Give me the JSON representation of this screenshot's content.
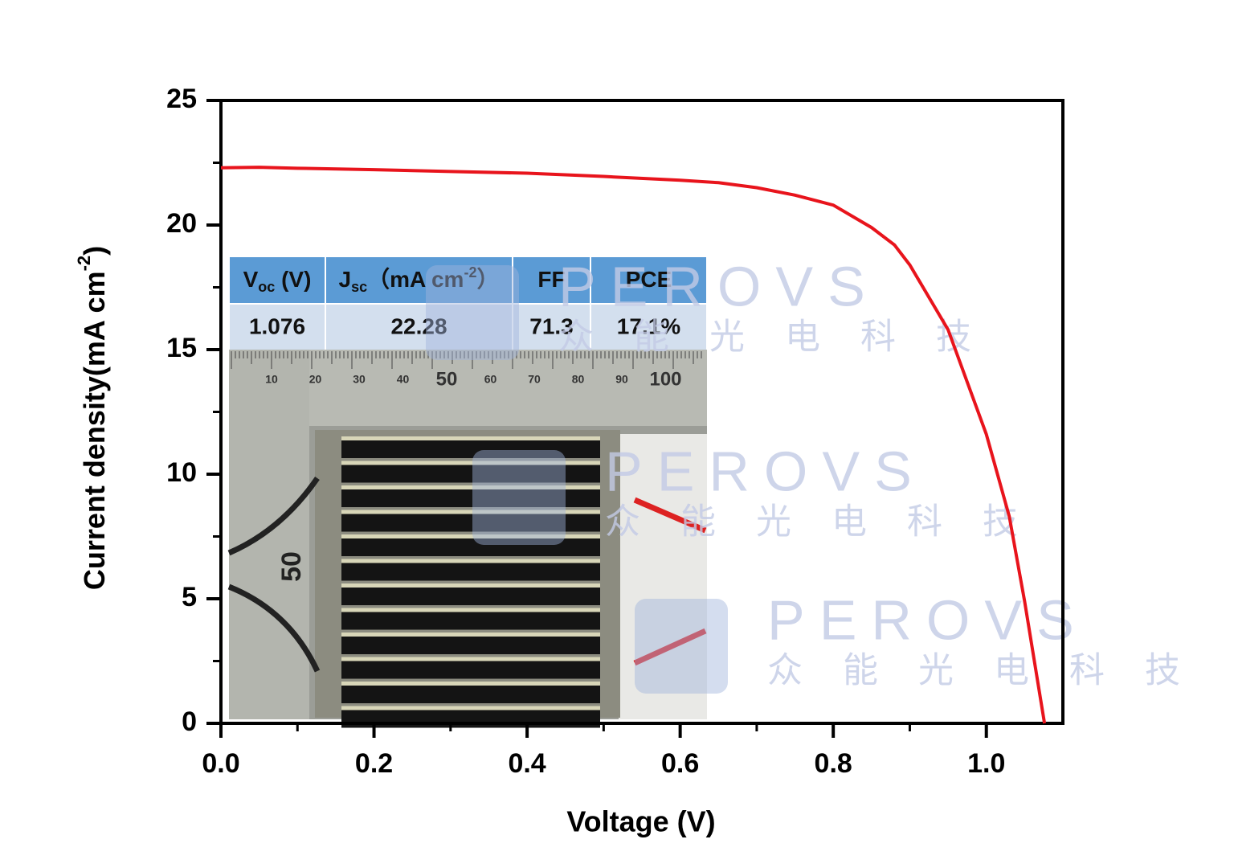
{
  "chart_data": {
    "type": "line",
    "xlabel": "Voltage (V)",
    "ylabel": {
      "text": "Current density(mA cm",
      "sup": "-2",
      "end": ")"
    },
    "x": [
      0,
      0.05,
      0.1,
      0.2,
      0.3,
      0.4,
      0.5,
      0.6,
      0.65,
      0.7,
      0.75,
      0.8,
      0.85,
      0.88,
      0.9,
      0.95,
      1.0,
      1.03,
      1.05,
      1.076
    ],
    "values": [
      22.3,
      22.32,
      22.28,
      22.22,
      22.15,
      22.08,
      21.95,
      21.8,
      21.7,
      21.5,
      21.2,
      20.8,
      19.9,
      19.2,
      18.4,
      15.8,
      11.6,
      8.3,
      4.9,
      0
    ],
    "color": "#e8141c",
    "xlim": [
      0,
      1.1
    ],
    "ylim": [
      0,
      25
    ],
    "xticks": [
      {
        "value": 0,
        "label": "0.0"
      },
      0.2,
      0.4,
      0.6,
      0.8,
      {
        "value": 1,
        "label": "1.0"
      }
    ],
    "yticks": [
      0,
      5,
      10,
      15,
      20,
      25
    ],
    "xminor_ticks": [
      0.1,
      0.3,
      0.5,
      0.7,
      0.9
    ],
    "yminor_ticks": [
      2.5,
      7.5,
      12.5,
      17.5,
      22.5
    ],
    "inset_table": {
      "header": [
        {
          "text": "V",
          "sub": "oc",
          "rest": " (V)"
        },
        {
          "text": "J",
          "sub": "sc",
          "rest": "（mA cm",
          "sup": "-2",
          "end": "）"
        },
        {
          "text": "FF"
        },
        {
          "text": "PCE"
        }
      ],
      "row": [
        "1.076",
        "22.28",
        "71.3",
        "17.1%"
      ]
    },
    "photo_ruler_labels": [
      "10",
      "20",
      "30",
      "40",
      "50",
      "60",
      "70",
      "80",
      "90",
      "100"
    ],
    "photo_side_label": "50",
    "watermark": {
      "brand": "PEROVS",
      "chinese": "众能光电科技"
    }
  }
}
